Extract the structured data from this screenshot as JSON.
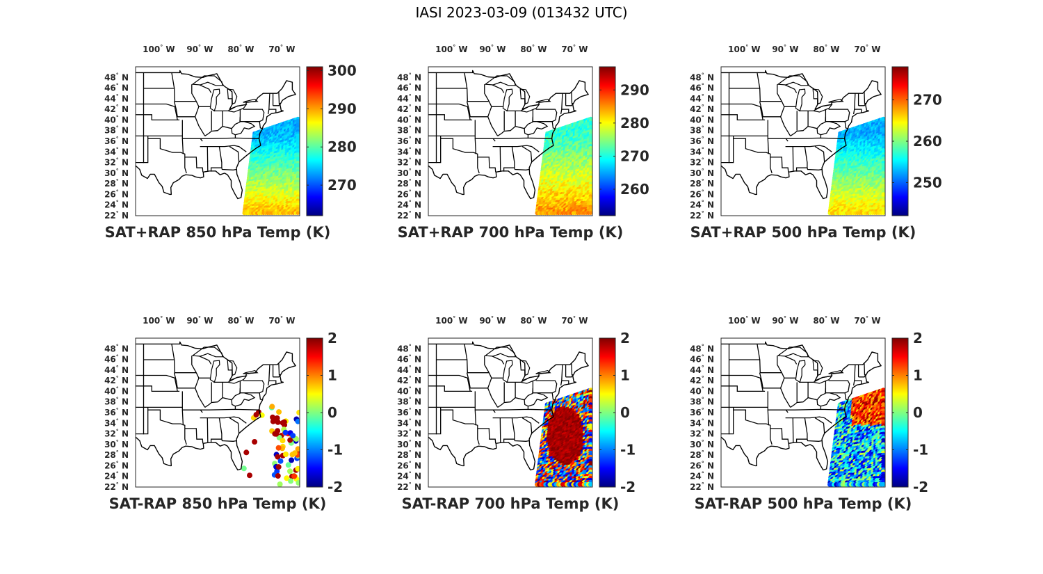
{
  "title": "IASI 2023-03-09 (013432 UTC)",
  "lon_ticks": [
    {
      "lon": -100,
      "label": "100",
      "hem": "W"
    },
    {
      "lon": -90,
      "label": "90",
      "hem": "W"
    },
    {
      "lon": -80,
      "label": "80",
      "hem": "W"
    },
    {
      "lon": -70,
      "label": "70",
      "hem": "W"
    }
  ],
  "lat_ticks": [
    {
      "lat": 48,
      "label": "48",
      "hem": "N"
    },
    {
      "lat": 46,
      "label": "46",
      "hem": "N"
    },
    {
      "lat": 44,
      "label": "44",
      "hem": "N"
    },
    {
      "lat": 42,
      "label": "42",
      "hem": "N"
    },
    {
      "lat": 40,
      "label": "40",
      "hem": "N"
    },
    {
      "lat": 38,
      "label": "38",
      "hem": "N"
    },
    {
      "lat": 36,
      "label": "36",
      "hem": "N"
    },
    {
      "lat": 34,
      "label": "34",
      "hem": "N"
    },
    {
      "lat": 32,
      "label": "32",
      "hem": "N"
    },
    {
      "lat": 30,
      "label": "30",
      "hem": "N"
    },
    {
      "lat": 28,
      "label": "28",
      "hem": "N"
    },
    {
      "lat": 26,
      "label": "26",
      "hem": "N"
    },
    {
      "lat": 24,
      "label": "24",
      "hem": "N"
    },
    {
      "lat": 22,
      "label": "22",
      "hem": "N"
    }
  ],
  "map_extent": {
    "lon_min": -106,
    "lon_max": -66,
    "lat_min": 22,
    "lat_max": 50
  },
  "colormap": "jet",
  "panels": [
    {
      "title": "SAT+RAP 850 hPa Temp (K)",
      "cmin": 262,
      "cmax": 301,
      "ticks": [
        270,
        280,
        290,
        300
      ],
      "pattern": "swath-low"
    },
    {
      "title": "SAT+RAP 700 hPa Temp (K)",
      "cmin": 252,
      "cmax": 297,
      "ticks": [
        260,
        270,
        280,
        290
      ],
      "pattern": "swath-mid"
    },
    {
      "title": "SAT+RAP 500 hPa Temp (K)",
      "cmin": 242,
      "cmax": 278,
      "ticks": [
        250,
        260,
        270
      ],
      "pattern": "swath-high"
    },
    {
      "title": "SAT-RAP 850 hPa Temp (K)",
      "cmin": -2,
      "cmax": 2,
      "ticks": [
        2,
        1,
        0,
        -1,
        -2
      ],
      "pattern": "diff-sparse"
    },
    {
      "title": "SAT-RAP 700 hPa Temp (K)",
      "cmin": -2,
      "cmax": 2,
      "ticks": [
        2,
        1,
        0,
        -1,
        -2
      ],
      "pattern": "diff-dense"
    },
    {
      "title": "SAT-RAP 500 hPa Temp (K)",
      "cmin": -2,
      "cmax": 2,
      "ticks": [
        2,
        1,
        0,
        -1,
        -2
      ],
      "pattern": "diff-mixed"
    }
  ]
}
